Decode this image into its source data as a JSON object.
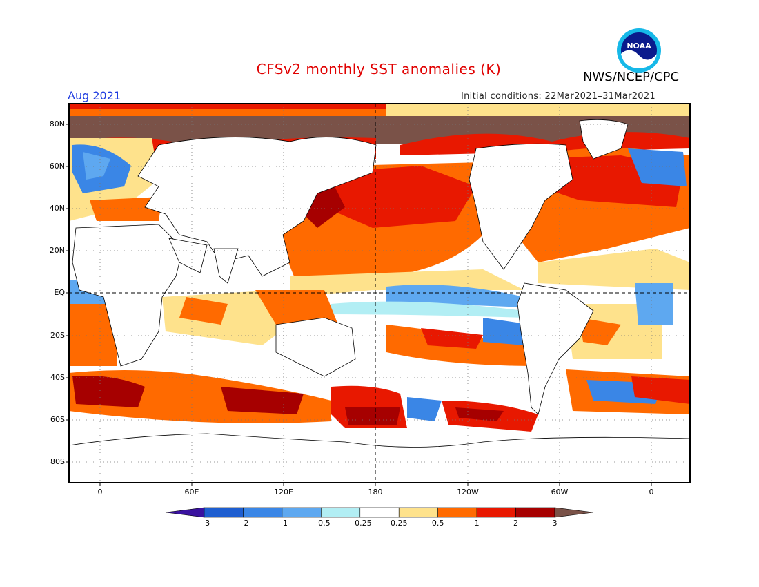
{
  "title": "CFSv2 monthly SST anomalies (K)",
  "agency": "NWS/NCEP/CPC",
  "logo_text": "NOAA",
  "month": "Aug 2021",
  "initial_conditions": "Initial conditions: 22Mar2021–31Mar2021",
  "lat_labels": [
    "80N",
    "60N",
    "40N",
    "20N",
    "EQ",
    "20S",
    "40S",
    "60S",
    "80S"
  ],
  "lon_labels": [
    "0",
    "60E",
    "120E",
    "180",
    "120W",
    "60W",
    "0"
  ],
  "colorbar": {
    "labels": [
      "−3",
      "−2",
      "−1",
      "−0.5",
      "−0.25",
      "0.25",
      "0.5",
      "1",
      "2",
      "3"
    ],
    "colors": [
      "#3a12a0",
      "#1e5ed0",
      "#3a86e6",
      "#5ea8f0",
      "#b2eef4",
      "#ffffff",
      "#fee28c",
      "#ff6a00",
      "#e81800",
      "#a60000",
      "#7a5248"
    ]
  },
  "anomaly_colors": {
    "strong_cold": "#1e5ed0",
    "cold": "#3a86e6",
    "weak_cold": "#5ea8f0",
    "slight_cold": "#b2eef4",
    "slight_warm": "#fee28c",
    "warm": "#ff6a00",
    "strong_warm": "#e81800",
    "very_warm": "#a60000",
    "extreme": "#7a5248"
  }
}
